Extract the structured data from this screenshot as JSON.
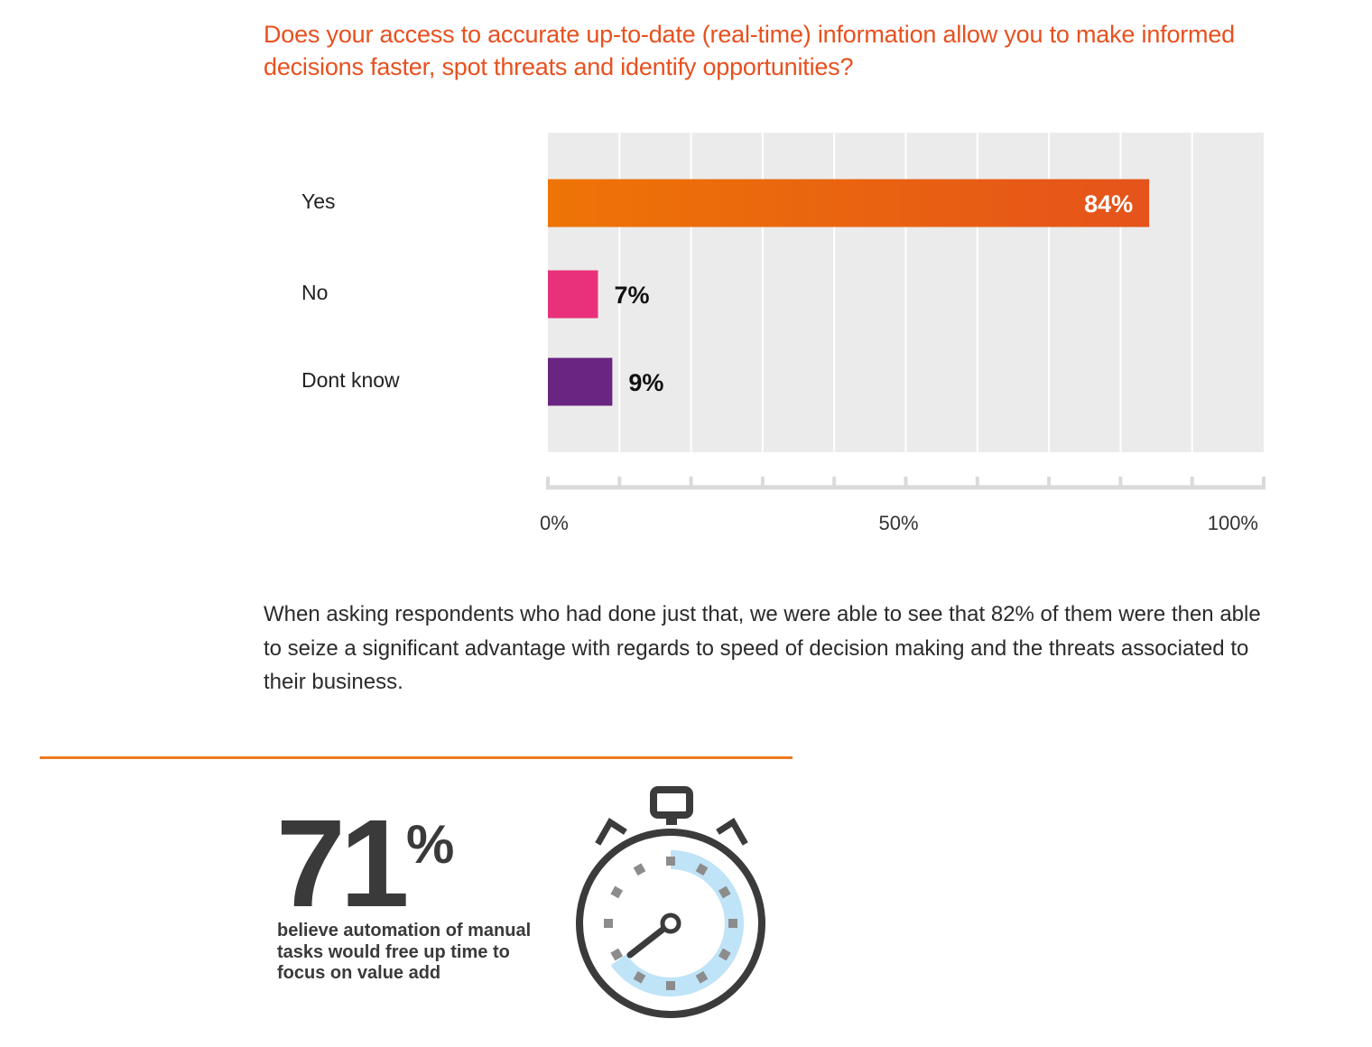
{
  "question": "Does your access to accurate up-to-date (real-time) information allow you to make informed decisions faster, spot threats and identify opportunities?",
  "chart_data": {
    "type": "bar",
    "orientation": "horizontal",
    "categories": [
      "Yes",
      "No",
      "Dont know"
    ],
    "values": [
      84,
      7,
      9
    ],
    "value_labels": [
      "84%",
      "7%",
      "9%"
    ],
    "xlim": [
      0,
      100
    ],
    "x_tick_labels": [
      "0%",
      "50%",
      "100%"
    ],
    "grid": true,
    "colors": [
      "#e95a12",
      "#e8317a",
      "#6a2482"
    ],
    "value_label_colors": [
      "#ffffff",
      "#111111",
      "#111111"
    ]
  },
  "paragraph": "When asking respondents who had done just that, we were able to see that 82% of them were then able to seize a significant advantage with regards to speed of decision making and the threats associated to their business.",
  "stat": {
    "value": "71",
    "unit": "%",
    "caption": "believe automation of manual tasks would free up time to focus on value add",
    "icon": "stopwatch-icon"
  },
  "colors": {
    "accent_orange": "#e8501e",
    "divider": "#ee7a1d",
    "stopwatch_fill": "#bfe3f7"
  }
}
